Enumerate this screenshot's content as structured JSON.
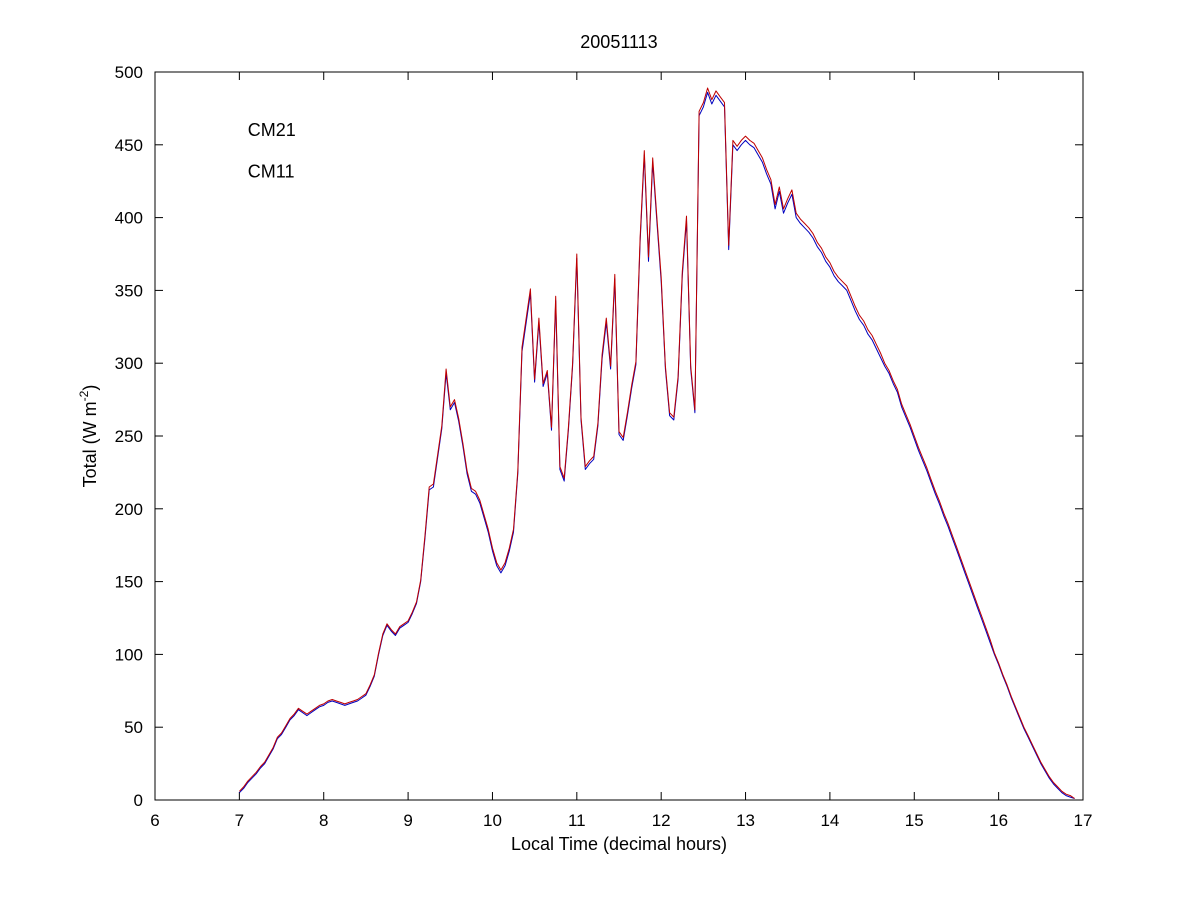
{
  "chart_data": {
    "type": "line",
    "title": "20051113",
    "xlabel": "Local Time (decimal hours)",
    "ylabel": "Total (W m-2)",
    "ylabel_parts": {
      "prefix": "Total (W m",
      "sup": "-2",
      "suffix": ")"
    },
    "xlim": [
      6,
      17
    ],
    "ylim": [
      0,
      500
    ],
    "xticks": [
      6,
      7,
      8,
      9,
      10,
      11,
      12,
      13,
      14,
      15,
      16,
      17
    ],
    "yticks": [
      0,
      50,
      100,
      150,
      200,
      250,
      300,
      350,
      400,
      450,
      500
    ],
    "grid": false,
    "legend_position": "top-left-inside",
    "series": [
      {
        "name": "CM21",
        "color": "#0000BF"
      },
      {
        "name": "CM11",
        "color": "#BF0000"
      }
    ],
    "columns": [
      "x",
      "CM21",
      "CM11"
    ],
    "points": [
      [
        7.0,
        5,
        6
      ],
      [
        7.05,
        8,
        9
      ],
      [
        7.1,
        12,
        13
      ],
      [
        7.15,
        15,
        16
      ],
      [
        7.2,
        18,
        19
      ],
      [
        7.25,
        22,
        23
      ],
      [
        7.3,
        25,
        26
      ],
      [
        7.35,
        30,
        31
      ],
      [
        7.4,
        35,
        36
      ],
      [
        7.45,
        42,
        43
      ],
      [
        7.5,
        45,
        46
      ],
      [
        7.55,
        50,
        51
      ],
      [
        7.6,
        55,
        56
      ],
      [
        7.65,
        58,
        59
      ],
      [
        7.7,
        62,
        63
      ],
      [
        7.75,
        60,
        61
      ],
      [
        7.8,
        58,
        59
      ],
      [
        7.85,
        60,
        61
      ],
      [
        7.9,
        62,
        63
      ],
      [
        7.95,
        64,
        65
      ],
      [
        8.0,
        65,
        66
      ],
      [
        8.05,
        67,
        68
      ],
      [
        8.1,
        68,
        69
      ],
      [
        8.15,
        67,
        68
      ],
      [
        8.2,
        66,
        67
      ],
      [
        8.25,
        65,
        66
      ],
      [
        8.3,
        66,
        67
      ],
      [
        8.35,
        67,
        68
      ],
      [
        8.4,
        68,
        69
      ],
      [
        8.45,
        70,
        71
      ],
      [
        8.5,
        72,
        73
      ],
      [
        8.55,
        78,
        79
      ],
      [
        8.6,
        85,
        86
      ],
      [
        8.65,
        100,
        101
      ],
      [
        8.7,
        113,
        114
      ],
      [
        8.75,
        120,
        121
      ],
      [
        8.8,
        116,
        117
      ],
      [
        8.85,
        113,
        114
      ],
      [
        8.9,
        118,
        119
      ],
      [
        8.95,
        120,
        121
      ],
      [
        9.0,
        122,
        123
      ],
      [
        9.05,
        128,
        129
      ],
      [
        9.1,
        135,
        136
      ],
      [
        9.15,
        150,
        151
      ],
      [
        9.2,
        180,
        182
      ],
      [
        9.25,
        213,
        215
      ],
      [
        9.3,
        215,
        217
      ],
      [
        9.35,
        235,
        237
      ],
      [
        9.4,
        255,
        257
      ],
      [
        9.45,
        293,
        296
      ],
      [
        9.5,
        268,
        270
      ],
      [
        9.55,
        273,
        275
      ],
      [
        9.6,
        260,
        262
      ],
      [
        9.65,
        243,
        245
      ],
      [
        9.7,
        224,
        226
      ],
      [
        9.75,
        212,
        214
      ],
      [
        9.8,
        210,
        212
      ],
      [
        9.85,
        204,
        206
      ],
      [
        9.9,
        194,
        196
      ],
      [
        9.95,
        184,
        186
      ],
      [
        10.0,
        171,
        173
      ],
      [
        10.05,
        161,
        163
      ],
      [
        10.1,
        156,
        158
      ],
      [
        10.15,
        161,
        163
      ],
      [
        10.2,
        171,
        173
      ],
      [
        10.25,
        184,
        186
      ],
      [
        10.3,
        224,
        226
      ],
      [
        10.35,
        308,
        311
      ],
      [
        10.4,
        328,
        331
      ],
      [
        10.45,
        348,
        351
      ],
      [
        10.5,
        287,
        289
      ],
      [
        10.55,
        328,
        331
      ],
      [
        10.6,
        284,
        286
      ],
      [
        10.65,
        293,
        295
      ],
      [
        10.7,
        254,
        256
      ],
      [
        10.75,
        343,
        346
      ],
      [
        10.8,
        227,
        229
      ],
      [
        10.85,
        219,
        221
      ],
      [
        10.9,
        254,
        256
      ],
      [
        10.95,
        298,
        300
      ],
      [
        11.0,
        372,
        375
      ],
      [
        11.05,
        261,
        263
      ],
      [
        11.1,
        227,
        229
      ],
      [
        11.15,
        231,
        233
      ],
      [
        11.2,
        234,
        236
      ],
      [
        11.25,
        257,
        259
      ],
      [
        11.3,
        303,
        306
      ],
      [
        11.35,
        328,
        331
      ],
      [
        11.4,
        296,
        298
      ],
      [
        11.45,
        358,
        361
      ],
      [
        11.5,
        251,
        253
      ],
      [
        11.55,
        247,
        249
      ],
      [
        11.6,
        264,
        266
      ],
      [
        11.65,
        283,
        285
      ],
      [
        11.7,
        299,
        301
      ],
      [
        11.75,
        383,
        386
      ],
      [
        11.8,
        443,
        446
      ],
      [
        11.85,
        370,
        373
      ],
      [
        11.9,
        438,
        441
      ],
      [
        11.95,
        396,
        399
      ],
      [
        12.0,
        356,
        359
      ],
      [
        12.05,
        296,
        298
      ],
      [
        12.1,
        264,
        266
      ],
      [
        12.15,
        261,
        263
      ],
      [
        12.2,
        289,
        291
      ],
      [
        12.25,
        360,
        363
      ],
      [
        12.3,
        398,
        401
      ],
      [
        12.35,
        296,
        298
      ],
      [
        12.4,
        266,
        268
      ],
      [
        12.45,
        470,
        473
      ],
      [
        12.5,
        476,
        479
      ],
      [
        12.55,
        486,
        489
      ],
      [
        12.6,
        478,
        481
      ],
      [
        12.65,
        484,
        487
      ],
      [
        12.7,
        480,
        483
      ],
      [
        12.75,
        476,
        479
      ],
      [
        12.8,
        378,
        381
      ],
      [
        12.85,
        450,
        453
      ],
      [
        12.9,
        446,
        449
      ],
      [
        12.95,
        450,
        453
      ],
      [
        13.0,
        453,
        456
      ],
      [
        13.05,
        450,
        453
      ],
      [
        13.1,
        448,
        451
      ],
      [
        13.15,
        443,
        446
      ],
      [
        13.2,
        438,
        441
      ],
      [
        13.25,
        430,
        433
      ],
      [
        13.3,
        423,
        426
      ],
      [
        13.35,
        406,
        409
      ],
      [
        13.4,
        418,
        421
      ],
      [
        13.45,
        403,
        406
      ],
      [
        13.5,
        410,
        413
      ],
      [
        13.55,
        416,
        419
      ],
      [
        13.6,
        400,
        403
      ],
      [
        13.65,
        396,
        399
      ],
      [
        13.7,
        393,
        396
      ],
      [
        13.75,
        390,
        393
      ],
      [
        13.8,
        386,
        389
      ],
      [
        13.85,
        380,
        383
      ],
      [
        13.9,
        376,
        379
      ],
      [
        13.95,
        370,
        373
      ],
      [
        14.0,
        366,
        369
      ],
      [
        14.05,
        360,
        363
      ],
      [
        14.1,
        356,
        359
      ],
      [
        14.15,
        353,
        356
      ],
      [
        14.2,
        350,
        353
      ],
      [
        14.25,
        343,
        346
      ],
      [
        14.3,
        336,
        339
      ],
      [
        14.35,
        330,
        333
      ],
      [
        14.4,
        326,
        329
      ],
      [
        14.45,
        320,
        323
      ],
      [
        14.5,
        316,
        319
      ],
      [
        14.55,
        310,
        313
      ],
      [
        14.6,
        304,
        307
      ],
      [
        14.65,
        298,
        300
      ],
      [
        14.7,
        293,
        295
      ],
      [
        14.75,
        286,
        288
      ],
      [
        14.8,
        280,
        282
      ],
      [
        14.85,
        270,
        272
      ],
      [
        14.9,
        263,
        265
      ],
      [
        14.95,
        256,
        258
      ],
      [
        15.0,
        248,
        250
      ],
      [
        15.05,
        240,
        242
      ],
      [
        15.1,
        233,
        235
      ],
      [
        15.15,
        226,
        228
      ],
      [
        15.2,
        218,
        220
      ],
      [
        15.25,
        210,
        212
      ],
      [
        15.3,
        203,
        205
      ],
      [
        15.35,
        195,
        197
      ],
      [
        15.4,
        188,
        190
      ],
      [
        15.45,
        180,
        182
      ],
      [
        15.5,
        172,
        174
      ],
      [
        15.55,
        164,
        166
      ],
      [
        15.6,
        156,
        158
      ],
      [
        15.65,
        148,
        150
      ],
      [
        15.7,
        140,
        142
      ],
      [
        15.75,
        132,
        134
      ],
      [
        15.8,
        124,
        126
      ],
      [
        15.85,
        116,
        118
      ],
      [
        15.9,
        108,
        110
      ],
      [
        15.95,
        100,
        101
      ],
      [
        16.0,
        93,
        94
      ],
      [
        16.05,
        85,
        86
      ],
      [
        16.1,
        78,
        79
      ],
      [
        16.15,
        70,
        71
      ],
      [
        16.2,
        63,
        64
      ],
      [
        16.25,
        56,
        57
      ],
      [
        16.3,
        49,
        50
      ],
      [
        16.35,
        43,
        44
      ],
      [
        16.4,
        37,
        38
      ],
      [
        16.45,
        31,
        32
      ],
      [
        16.5,
        25,
        26
      ],
      [
        16.55,
        20,
        21
      ],
      [
        16.6,
        15,
        16
      ],
      [
        16.65,
        11,
        12
      ],
      [
        16.7,
        8,
        9
      ],
      [
        16.75,
        5,
        6
      ],
      [
        16.8,
        3,
        4
      ],
      [
        16.85,
        2,
        3
      ],
      [
        16.9,
        1,
        1
      ]
    ]
  }
}
